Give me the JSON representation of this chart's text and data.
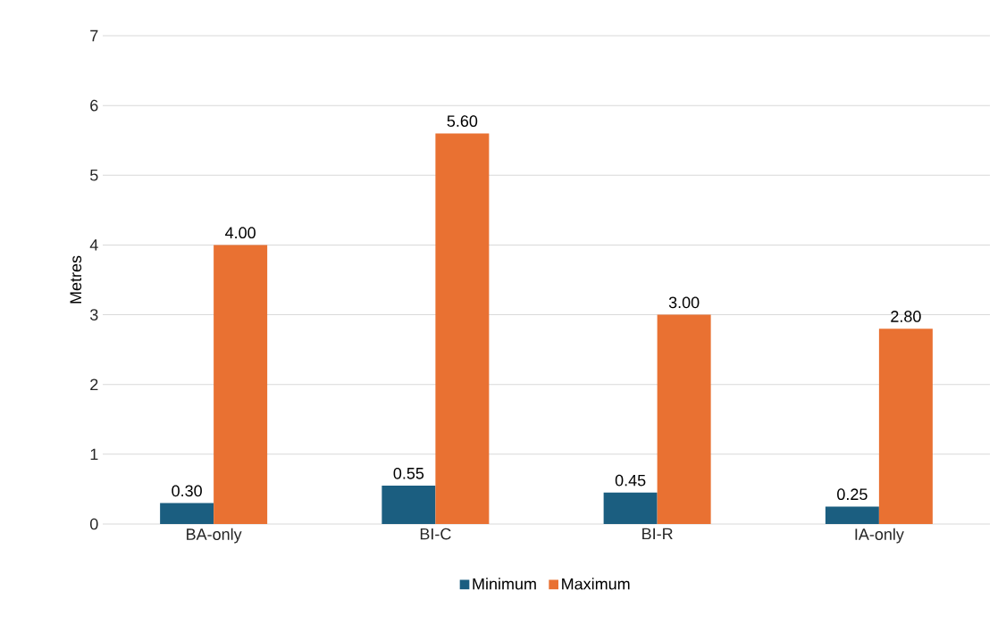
{
  "chart_data": {
    "type": "bar",
    "ylabel": "Metres",
    "categories": [
      "BA-only",
      "BI-C",
      "BI-R",
      "IA-only"
    ],
    "series": [
      {
        "name": "Minimum",
        "color": "#1b5e80",
        "values": [
          0.3,
          0.55,
          0.45,
          0.25
        ],
        "value_labels": [
          "0.30",
          "0.55",
          "0.45",
          "0.25"
        ]
      },
      {
        "name": "Maximum",
        "color": "#e97132",
        "values": [
          4.0,
          5.6,
          3.0,
          2.8
        ],
        "value_labels": [
          "4.00",
          "5.60",
          "3.00",
          "2.80"
        ]
      }
    ],
    "ylim": [
      0,
      7
    ],
    "yticks": [
      0,
      1,
      2,
      3,
      4,
      5,
      6,
      7
    ],
    "grid": "y",
    "legend": "bottom"
  }
}
